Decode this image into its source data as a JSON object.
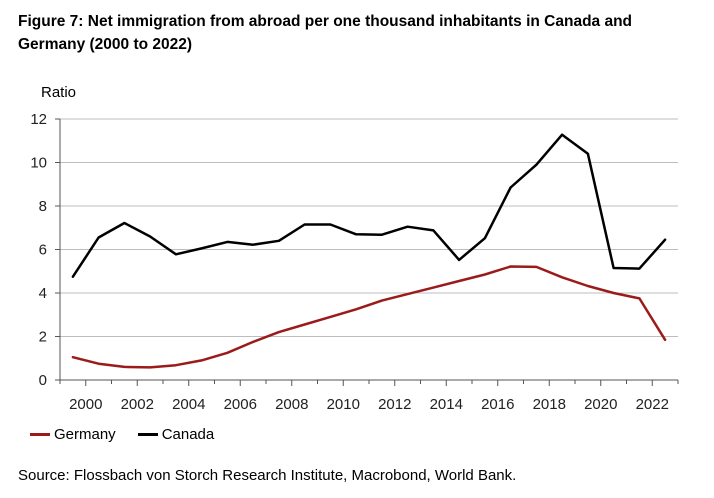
{
  "header": {
    "title": "Figure 7: Net immigration from abroad per one thousand inhabitants in Canada and Germany (2000 to 2022)"
  },
  "footer": {
    "source": "Source: Flossbach von Storch Research Institute, Macrobond, World Bank."
  },
  "colors": {
    "germany": "#9b1b1b",
    "canada": "#000000",
    "grid": "#bdbdbd",
    "axis": "#555555"
  },
  "chart_data": {
    "type": "line",
    "title": "Figure 7: Net immigration from abroad per one thousand inhabitants in Canada and Germany (2000 to 2022)",
    "xlabel": "",
    "ylabel": "Ratio",
    "ylim": [
      0,
      12
    ],
    "yticks": [
      "0",
      "2",
      "4",
      "6",
      "8",
      "10",
      "12"
    ],
    "xlim": [
      1999,
      2023
    ],
    "xticks": [
      "2000",
      "2002",
      "2004",
      "2006",
      "2008",
      "2010",
      "2012",
      "2014",
      "2016",
      "2018",
      "2020",
      "2022"
    ],
    "grid": true,
    "legend_position": "bottom-left",
    "x": [
      1999.5,
      2000.5,
      2001.5,
      2002.5,
      2003.5,
      2004.5,
      2005.5,
      2006.5,
      2007.5,
      2008.5,
      2009.5,
      2010.5,
      2011.5,
      2012.5,
      2013.5,
      2014.5,
      2015.5,
      2016.5,
      2017.5,
      2018.5,
      2019.5,
      2020.5,
      2021.5,
      2022.5
    ],
    "series": [
      {
        "name": "Germany",
        "values": [
          1.05,
          0.75,
          0.6,
          0.58,
          0.68,
          0.9,
          1.25,
          1.75,
          2.2,
          2.55,
          2.9,
          3.25,
          3.65,
          3.95,
          4.25,
          4.55,
          4.85,
          5.22,
          5.2,
          4.72,
          4.32,
          4.0,
          3.75,
          1.85
        ]
      },
      {
        "name": "Canada",
        "values": [
          4.75,
          6.55,
          7.22,
          6.6,
          5.78,
          6.05,
          6.35,
          6.22,
          6.4,
          7.15,
          7.15,
          6.7,
          6.68,
          7.05,
          6.88,
          5.52,
          6.52,
          8.85,
          9.9,
          11.28,
          10.4,
          5.15,
          5.12,
          6.45
        ]
      }
    ]
  }
}
